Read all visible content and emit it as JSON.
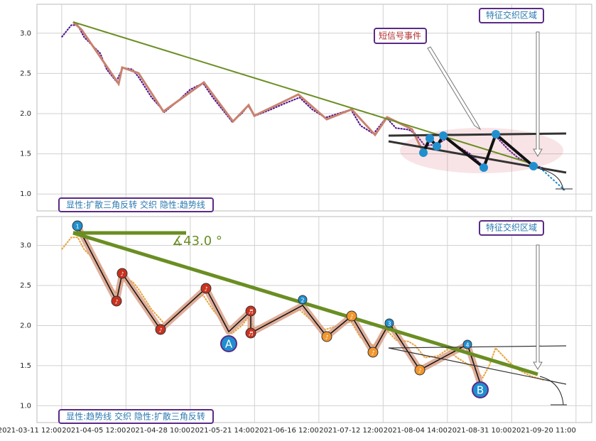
{
  "chart_data": [
    {
      "type": "line",
      "color": "#4b0f8c",
      "x": [
        0,
        3,
        5,
        7,
        12,
        14,
        17,
        19,
        22,
        24,
        28,
        32,
        36,
        40,
        44,
        47,
        50,
        53,
        56,
        58,
        60,
        65,
        69,
        74,
        78,
        82,
        86,
        90,
        93,
        97,
        101,
        104,
        108,
        110,
        113,
        117,
        120,
        123,
        127,
        131,
        133,
        135,
        139,
        142,
        146,
        150
      ],
      "values": [
        2.95,
        3.1,
        3.1,
        2.95,
        2.75,
        2.55,
        2.4,
        2.57,
        2.55,
        2.45,
        2.2,
        2.02,
        2.15,
        2.3,
        2.38,
        2.2,
        2.05,
        1.9,
        2.0,
        2.1,
        1.97,
        2.05,
        2.12,
        2.2,
        2.05,
        1.95,
        2.0,
        2.05,
        1.85,
        1.75,
        1.95,
        1.82,
        1.8,
        1.75,
        1.6,
        1.62,
        1.7,
        1.6,
        1.5,
        1.35,
        1.5,
        1.72,
        1.55,
        1.45,
        1.37,
        1.32
      ],
      "xlim": [
        -7.7,
        164.9
      ],
      "ylim": [
        0.79,
        3.36
      ],
      "xticks": [
        0,
        20,
        40,
        60,
        80,
        100,
        120,
        140,
        160
      ],
      "yticks": [
        {
          "value": 1,
          "label": "1.0"
        },
        {
          "value": 1.5,
          "label": "1.5"
        },
        {
          "value": 2,
          "label": "2.0"
        },
        {
          "value": 2.5,
          "label": "2.5"
        },
        {
          "value": 3,
          "label": "3.0"
        }
      ],
      "grid": true,
      "annotations": [
        "短信号事件",
        "特征交织区域",
        "显性:扩散三角反转 交织 隐性:趋势线"
      ]
    },
    {
      "type": "line",
      "color": "#e8a33a",
      "x": [
        0,
        3,
        5,
        7,
        12,
        14,
        17,
        19,
        22,
        24,
        28,
        32,
        36,
        40,
        44,
        47,
        50,
        53,
        56,
        58,
        60,
        65,
        69,
        74,
        78,
        82,
        86,
        90,
        93,
        97,
        101,
        104,
        108,
        110,
        113,
        117,
        120,
        123,
        127,
        131,
        133,
        135,
        139,
        142,
        146,
        150
      ],
      "values": [
        2.95,
        3.1,
        3.1,
        2.95,
        2.75,
        2.55,
        2.4,
        2.57,
        2.55,
        2.45,
        2.2,
        2.02,
        2.15,
        2.3,
        2.38,
        2.2,
        2.05,
        1.9,
        2.0,
        2.1,
        1.97,
        2.05,
        2.12,
        2.2,
        2.05,
        1.95,
        2.0,
        2.05,
        1.85,
        1.75,
        1.95,
        1.82,
        1.8,
        1.75,
        1.6,
        1.62,
        1.7,
        1.6,
        1.5,
        1.35,
        1.5,
        1.72,
        1.55,
        1.45,
        1.37,
        1.32
      ],
      "xlim": [
        -7.7,
        164.9
      ],
      "ylim": [
        0.79,
        3.36
      ],
      "xticks": [
        {
          "value": 0,
          "label": "2021-03-11 12:00"
        },
        {
          "value": 20,
          "label": "2021-04-05 12:00"
        },
        {
          "value": 40,
          "label": "2021-04-28 10:00"
        },
        {
          "value": 60,
          "label": "2021-05-21 14:00"
        },
        {
          "value": 80,
          "label": "2021-06-16 12:00"
        },
        {
          "value": 100,
          "label": "2021-07-12 12:00"
        },
        {
          "value": 120,
          "label": "2021-08-04 14:00"
        },
        {
          "value": 140,
          "label": "2021-08-31 10:00"
        },
        {
          "value": 160,
          "label": "2021-09-20 11:00"
        }
      ],
      "yticks": [
        {
          "value": 1,
          "label": "1.0"
        },
        {
          "value": 1.5,
          "label": "1.5"
        },
        {
          "value": 2,
          "label": "2.0"
        },
        {
          "value": 2.5,
          "label": "2.5"
        },
        {
          "value": 3,
          "label": "3.0"
        }
      ],
      "grid": true,
      "annotations": [
        "特征交织区域",
        "显性:趋势线 交织 隐性:扩散三角反转",
        "∡43.0 °"
      ],
      "markers": [
        "1",
        "♪",
        "♪",
        "♪",
        "♪",
        "A",
        "♬",
        "♬",
        "2",
        "♪",
        "♪",
        "♪",
        "3",
        "♪",
        "4",
        "B"
      ]
    }
  ]
}
